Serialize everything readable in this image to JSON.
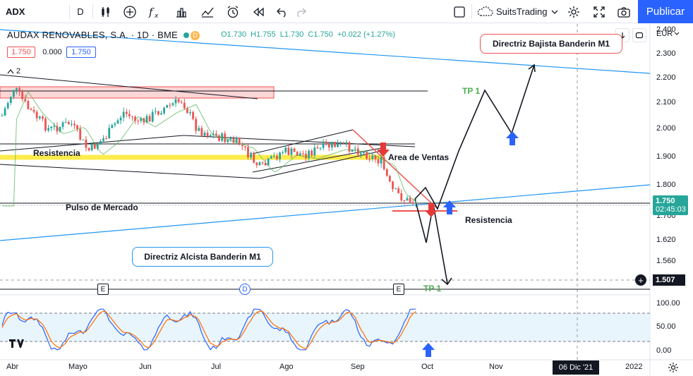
{
  "toolbar": {
    "symbol": "ADX",
    "interval": "D",
    "broker": "SuitsTrading",
    "publish_label": "Publicar"
  },
  "legend": {
    "title": "AUDAX RENOVABLES, S.A. · 1D · BME",
    "open": "O1.730",
    "high": "H1.755",
    "low": "L1.730",
    "close": "C1.750",
    "change": "+0.022 (+1.27%)",
    "bid": "1.750",
    "spread": "0.000",
    "ask": "1.750",
    "indicator_count": "2",
    "currency": "EUR"
  },
  "price_axis": {
    "ticks": [
      "2.400",
      "2.300",
      "2.200",
      "2.100",
      "2.000",
      "1.900",
      "1.800",
      "1.700",
      "1.620",
      "1.560"
    ],
    "last_price": "1.750",
    "countdown": "02:45:03",
    "crosshair_price": "1.507",
    "colors": {
      "last_price_bg": "#26a69a",
      "crosshair_bg": "#131722"
    }
  },
  "osc_axis": {
    "ticks": [
      "100.00",
      "50.00",
      "0.00"
    ]
  },
  "time_axis": {
    "labels": [
      "Abr",
      "Mayo",
      "Jun",
      "Jul",
      "Ago",
      "Sep",
      "Oct",
      "Nov",
      "2022"
    ],
    "crosshair_date": "06 Dic '21"
  },
  "annotations": {
    "directriz_bajista": "Directriz Bajista Banderin M1",
    "directriz_alcista": "Directriz Alcista Banderin M1",
    "resistencia_left": "Resistencia",
    "resistencia_right": "Resistencia",
    "area_ventas": "Area de Ventas",
    "pulso_mercado": "Pulso de Mercado",
    "tp_upper": "TP  1",
    "tp_lower": "TP  1"
  },
  "event_markers": [
    "E",
    "D",
    "E"
  ],
  "colors": {
    "up": "#26a69a",
    "down": "#ef5350",
    "accent": "#2962ff",
    "tp": "#4caf50"
  }
}
